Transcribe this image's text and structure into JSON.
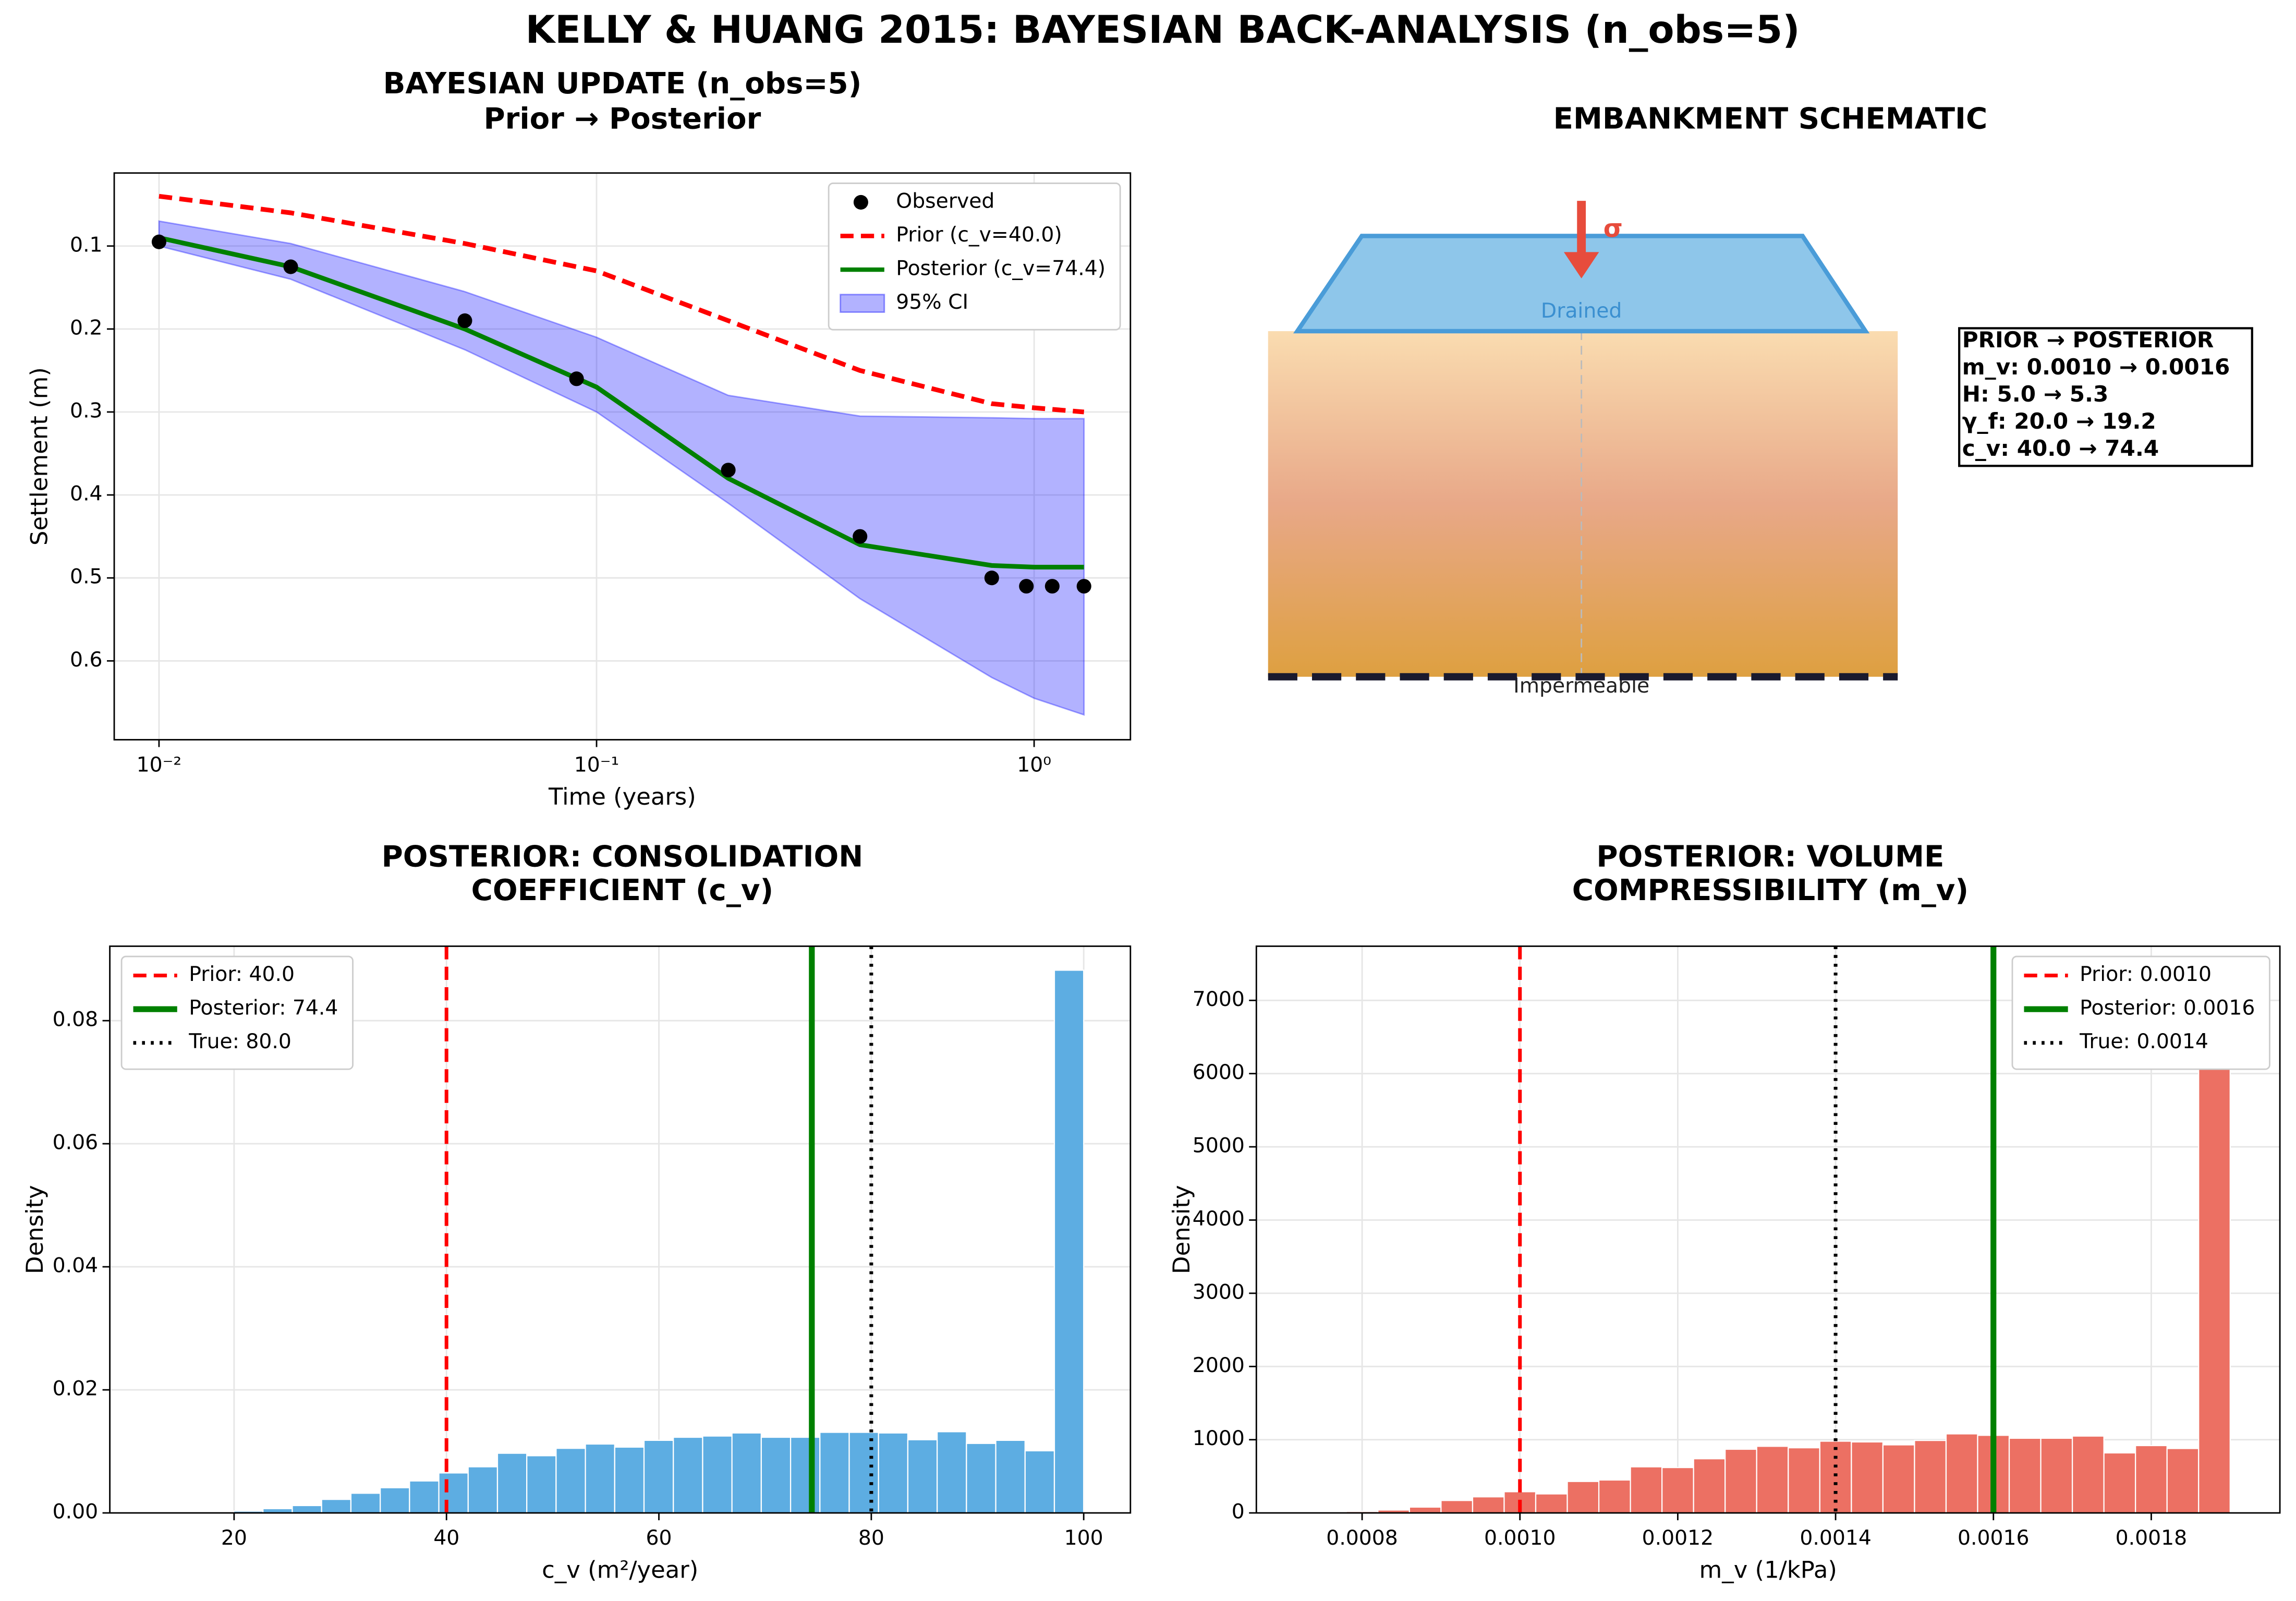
{
  "title": "KELLY & HUANG 2015: BAYESIAN BACK-ANALYSIS (n_obs=5)",
  "chart_data": [
    {
      "type": "line",
      "title": [
        "BAYESIAN UPDATE (n_obs=5)",
        "Prior → Posterior"
      ],
      "xlabel": "Time (years)",
      "ylabel": "Settlement (m)",
      "xscale": "log",
      "xlim": [
        0.0079,
        1.66
      ],
      "xticks": [
        {
          "value": 0.01,
          "label": "10⁻²"
        },
        {
          "value": 0.1,
          "label": "10⁻¹"
        },
        {
          "value": 1,
          "label": "10⁰"
        }
      ],
      "ylim": [
        0.012,
        0.695
      ],
      "y_inverted": true,
      "yticks": [
        0.1,
        0.2,
        0.3,
        0.4,
        0.5,
        0.6
      ],
      "grid": true,
      "legend": "upper right",
      "series": [
        {
          "name": "Observed",
          "style": "markers",
          "color": "#000000",
          "x": [
            0.01,
            0.02,
            0.05,
            0.09,
            0.2,
            0.4,
            0.8,
            0.96,
            1.1,
            1.3
          ],
          "values": [
            0.095,
            0.125,
            0.19,
            0.26,
            0.37,
            0.45,
            0.5,
            0.51,
            0.51,
            0.51
          ]
        },
        {
          "name": "Prior (c_v=40.0)",
          "style": "dashed",
          "color": "#ff0000",
          "x": [
            0.01,
            0.02,
            0.05,
            0.1,
            0.2,
            0.4,
            0.8,
            1.0,
            1.3
          ],
          "values": [
            0.04,
            0.06,
            0.097,
            0.13,
            0.19,
            0.25,
            0.29,
            0.295,
            0.3
          ]
        },
        {
          "name": "Posterior (c_v=74.4)",
          "style": "solid",
          "color": "#008000",
          "x": [
            0.01,
            0.02,
            0.05,
            0.1,
            0.2,
            0.4,
            0.8,
            1.0,
            1.3
          ],
          "values": [
            0.09,
            0.125,
            0.2,
            0.27,
            0.38,
            0.46,
            0.485,
            0.487,
            0.487
          ]
        },
        {
          "name": "95% CI",
          "style": "band",
          "color": "#0000ff",
          "x": [
            0.01,
            0.02,
            0.05,
            0.1,
            0.2,
            0.4,
            0.8,
            1.0,
            1.3
          ],
          "lower": [
            0.07,
            0.097,
            0.155,
            0.21,
            0.28,
            0.305,
            0.307,
            0.308,
            0.308
          ],
          "upper": [
            0.1,
            0.14,
            0.225,
            0.3,
            0.41,
            0.525,
            0.62,
            0.645,
            0.665
          ]
        }
      ]
    },
    {
      "type": "diagram",
      "title": [
        "EMBANKMENT SCHEMATIC"
      ],
      "load_label": "σ",
      "top_label": "Drained",
      "bottom_label": "Impermeable",
      "info_box": [
        "PRIOR → POSTERIOR",
        "m_v: 0.0010 → 0.0016",
        "H: 5.0 → 5.3",
        "γ_f: 20.0 → 19.2",
        "c_v: 40.0 → 74.4"
      ]
    },
    {
      "type": "histogram",
      "title": [
        "POSTERIOR: CONSOLIDATION",
        "COEFFICIENT (c_v)"
      ],
      "xlabel": "c_v (m²/year)",
      "ylabel": "Density",
      "color": "#5dade2",
      "edgecolor": "#ffffff",
      "bins": [
        17.2,
        19.96,
        22.72,
        25.48,
        28.24,
        31.0,
        33.76,
        36.52,
        39.28,
        42.04,
        44.8,
        47.56,
        50.32,
        53.08,
        55.84,
        58.6,
        61.36,
        64.12,
        66.88,
        69.64,
        72.4,
        75.16,
        77.92,
        80.68,
        83.44,
        86.2,
        88.96,
        91.72,
        94.48,
        97.24,
        100.0
      ],
      "values": [
        0.0001,
        0.0003,
        0.0007,
        0.0012,
        0.0022,
        0.0032,
        0.0041,
        0.0052,
        0.0065,
        0.0075,
        0.0097,
        0.0093,
        0.0105,
        0.0112,
        0.0107,
        0.0118,
        0.0123,
        0.0125,
        0.013,
        0.0123,
        0.0123,
        0.0131,
        0.0131,
        0.013,
        0.0119,
        0.0132,
        0.0113,
        0.0118,
        0.0101,
        0.0882
      ],
      "xlim": [
        8.3,
        104.4
      ],
      "xticks": [
        20,
        40,
        60,
        80,
        100
      ],
      "ylim": [
        0,
        0.0921
      ],
      "yticks": [
        {
          "value": 0,
          "label": "0.00"
        },
        {
          "value": 0.02,
          "label": "0.02"
        },
        {
          "value": 0.04,
          "label": "0.04"
        },
        {
          "value": 0.06,
          "label": "0.06"
        },
        {
          "value": 0.08,
          "label": "0.08"
        }
      ],
      "grid": true,
      "legend": "upper left",
      "vlines": [
        {
          "name": "Prior: 40.0",
          "value": 40.0,
          "color": "#ff0000",
          "style": "dashed"
        },
        {
          "name": "Posterior: 74.4",
          "value": 74.4,
          "color": "#008000",
          "style": "solid"
        },
        {
          "name": "True: 80.0",
          "value": 80.0,
          "color": "#000000",
          "style": "dotted"
        }
      ]
    },
    {
      "type": "histogram",
      "title": [
        "POSTERIOR: VOLUME",
        "COMPRESSIBILITY (m_v)"
      ],
      "xlabel": "m_v (1/kPa)",
      "ylabel": "Density",
      "color": "#ec7063",
      "edgecolor": "#ffffff",
      "bins": [
        0.0007,
        0.00074,
        0.00078,
        0.00082,
        0.00086,
        0.0009,
        0.00094,
        0.00098,
        0.00102,
        0.00106,
        0.0011,
        0.00114,
        0.00118,
        0.00122,
        0.00126,
        0.0013,
        0.00134,
        0.00138,
        0.00142,
        0.00146,
        0.0015,
        0.00154,
        0.00158,
        0.00162,
        0.00166,
        0.0017,
        0.00174,
        0.00178,
        0.00182,
        0.00186,
        0.0019
      ],
      "values": [
        0,
        5,
        20,
        40,
        80,
        170,
        220,
        290,
        260,
        430,
        450,
        630,
        620,
        740,
        870,
        910,
        890,
        980,
        970,
        930,
        990,
        1080,
        1060,
        1020,
        1020,
        1050,
        820,
        920,
        880,
        7330
      ],
      "xlim": [
        0.000666,
        0.001963
      ],
      "xticks": [
        0.0008,
        {
          "value": 0.001,
          "label": "0.0010"
        },
        0.0012,
        0.0014,
        0.0016,
        0.0018
      ],
      "ylim": [
        0,
        7740
      ],
      "yticks": [
        0,
        1000,
        2000,
        3000,
        4000,
        5000,
        6000,
        7000
      ],
      "grid": true,
      "legend": "upper right",
      "vlines": [
        {
          "name": "Prior: 0.0010",
          "value": 0.001,
          "color": "#ff0000",
          "style": "dashed"
        },
        {
          "name": "Posterior: 0.0016",
          "value": 0.0016,
          "color": "#008000",
          "style": "solid"
        },
        {
          "name": "True: 0.0014",
          "value": 0.0014,
          "color": "#000000",
          "style": "dotted"
        }
      ]
    }
  ]
}
